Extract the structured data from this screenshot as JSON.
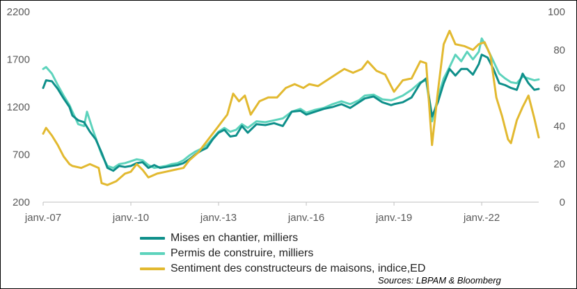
{
  "chart_data": {
    "type": "line",
    "x_tick_labels": [
      "janv.-07",
      "janv.-10",
      "janv.-13",
      "janv.-16",
      "janv.-19",
      "janv.-22"
    ],
    "x_ticks": [
      2007,
      2010,
      2013,
      2016,
      2019,
      2022
    ],
    "xlim": [
      2007,
      2023.95
    ],
    "y_left": {
      "ylim": [
        200,
        2200
      ],
      "ticks": [
        200,
        700,
        1200,
        1700,
        2200
      ]
    },
    "y_right": {
      "ylim": [
        0,
        100
      ],
      "ticks": [
        0,
        20,
        40,
        60,
        80,
        100
      ]
    },
    "grid": false,
    "legend_position": "bottom",
    "series": [
      {
        "name": "Mises en chantier, milliers",
        "axis": "left",
        "color": "#0E8F8A",
        "points": [
          [
            2007.0,
            1400
          ],
          [
            2007.1,
            1480
          ],
          [
            2007.3,
            1470
          ],
          [
            2007.5,
            1390
          ],
          [
            2007.7,
            1290
          ],
          [
            2007.9,
            1200
          ],
          [
            2008.0,
            1110
          ],
          [
            2008.2,
            1060
          ],
          [
            2008.4,
            1040
          ],
          [
            2008.6,
            940
          ],
          [
            2008.8,
            860
          ],
          [
            2009.0,
            720
          ],
          [
            2009.2,
            560
          ],
          [
            2009.4,
            530
          ],
          [
            2009.6,
            580
          ],
          [
            2009.8,
            570
          ],
          [
            2010.0,
            580
          ],
          [
            2010.2,
            610
          ],
          [
            2010.4,
            620
          ],
          [
            2010.6,
            560
          ],
          [
            2010.8,
            590
          ],
          [
            2011.0,
            560
          ],
          [
            2011.2,
            570
          ],
          [
            2011.4,
            580
          ],
          [
            2011.6,
            590
          ],
          [
            2011.8,
            610
          ],
          [
            2012.0,
            650
          ],
          [
            2012.2,
            700
          ],
          [
            2012.4,
            740
          ],
          [
            2012.6,
            770
          ],
          [
            2012.8,
            860
          ],
          [
            2013.0,
            930
          ],
          [
            2013.2,
            960
          ],
          [
            2013.4,
            890
          ],
          [
            2013.6,
            900
          ],
          [
            2013.8,
            1000
          ],
          [
            2014.0,
            930
          ],
          [
            2014.3,
            1020
          ],
          [
            2014.6,
            1010
          ],
          [
            2014.9,
            1030
          ],
          [
            2015.2,
            1000
          ],
          [
            2015.5,
            1150
          ],
          [
            2015.8,
            1160
          ],
          [
            2016.0,
            1120
          ],
          [
            2016.3,
            1150
          ],
          [
            2016.6,
            1180
          ],
          [
            2016.9,
            1200
          ],
          [
            2017.2,
            1230
          ],
          [
            2017.5,
            1190
          ],
          [
            2017.8,
            1250
          ],
          [
            2018.0,
            1290
          ],
          [
            2018.3,
            1310
          ],
          [
            2018.6,
            1250
          ],
          [
            2018.9,
            1220
          ],
          [
            2019.0,
            1230
          ],
          [
            2019.3,
            1250
          ],
          [
            2019.6,
            1300
          ],
          [
            2019.9,
            1450
          ],
          [
            2020.1,
            1500
          ],
          [
            2020.3,
            1100
          ],
          [
            2020.5,
            1250
          ],
          [
            2020.7,
            1450
          ],
          [
            2020.9,
            1600
          ],
          [
            2021.1,
            1530
          ],
          [
            2021.3,
            1600
          ],
          [
            2021.5,
            1600
          ],
          [
            2021.7,
            1540
          ],
          [
            2021.9,
            1650
          ],
          [
            2022.0,
            1750
          ],
          [
            2022.2,
            1720
          ],
          [
            2022.4,
            1600
          ],
          [
            2022.6,
            1450
          ],
          [
            2022.8,
            1430
          ],
          [
            2023.0,
            1400
          ],
          [
            2023.2,
            1380
          ],
          [
            2023.4,
            1550
          ],
          [
            2023.6,
            1450
          ],
          [
            2023.8,
            1380
          ],
          [
            2023.95,
            1390
          ]
        ]
      },
      {
        "name": "Permis de construire, milliers",
        "axis": "left",
        "color": "#5DD3BC",
        "points": [
          [
            2007.0,
            1600
          ],
          [
            2007.1,
            1620
          ],
          [
            2007.3,
            1550
          ],
          [
            2007.5,
            1430
          ],
          [
            2007.7,
            1320
          ],
          [
            2007.9,
            1220
          ],
          [
            2008.0,
            1150
          ],
          [
            2008.2,
            1020
          ],
          [
            2008.4,
            1000
          ],
          [
            2008.5,
            1150
          ],
          [
            2008.7,
            960
          ],
          [
            2009.0,
            700
          ],
          [
            2009.2,
            580
          ],
          [
            2009.4,
            560
          ],
          [
            2009.6,
            600
          ],
          [
            2009.8,
            610
          ],
          [
            2010.0,
            630
          ],
          [
            2010.2,
            650
          ],
          [
            2010.4,
            640
          ],
          [
            2010.6,
            590
          ],
          [
            2010.8,
            560
          ],
          [
            2011.0,
            570
          ],
          [
            2011.2,
            580
          ],
          [
            2011.4,
            600
          ],
          [
            2011.6,
            610
          ],
          [
            2011.8,
            640
          ],
          [
            2012.0,
            690
          ],
          [
            2012.2,
            730
          ],
          [
            2012.4,
            760
          ],
          [
            2012.6,
            800
          ],
          [
            2012.8,
            870
          ],
          [
            2013.0,
            940
          ],
          [
            2013.2,
            980
          ],
          [
            2013.4,
            940
          ],
          [
            2013.6,
            960
          ],
          [
            2013.8,
            1020
          ],
          [
            2014.0,
            980
          ],
          [
            2014.3,
            1050
          ],
          [
            2014.6,
            1040
          ],
          [
            2014.9,
            1060
          ],
          [
            2015.2,
            1080
          ],
          [
            2015.5,
            1150
          ],
          [
            2015.8,
            1180
          ],
          [
            2016.0,
            1140
          ],
          [
            2016.3,
            1170
          ],
          [
            2016.6,
            1190
          ],
          [
            2016.9,
            1230
          ],
          [
            2017.2,
            1260
          ],
          [
            2017.5,
            1230
          ],
          [
            2017.8,
            1270
          ],
          [
            2018.0,
            1320
          ],
          [
            2018.3,
            1330
          ],
          [
            2018.6,
            1280
          ],
          [
            2018.9,
            1270
          ],
          [
            2019.0,
            1280
          ],
          [
            2019.3,
            1320
          ],
          [
            2019.6,
            1380
          ],
          [
            2019.9,
            1460
          ],
          [
            2020.1,
            1480
          ],
          [
            2020.3,
            1050
          ],
          [
            2020.5,
            1300
          ],
          [
            2020.7,
            1500
          ],
          [
            2020.9,
            1620
          ],
          [
            2021.1,
            1750
          ],
          [
            2021.3,
            1680
          ],
          [
            2021.5,
            1780
          ],
          [
            2021.7,
            1700
          ],
          [
            2021.9,
            1780
          ],
          [
            2022.0,
            1920
          ],
          [
            2022.2,
            1810
          ],
          [
            2022.4,
            1680
          ],
          [
            2022.6,
            1550
          ],
          [
            2022.8,
            1500
          ],
          [
            2023.0,
            1460
          ],
          [
            2023.2,
            1450
          ],
          [
            2023.4,
            1520
          ],
          [
            2023.6,
            1500
          ],
          [
            2023.8,
            1480
          ],
          [
            2023.95,
            1490
          ]
        ]
      },
      {
        "name": "Sentiment des constructeurs de maisons, indice,ED",
        "axis": "right",
        "color": "#E2B930",
        "points": [
          [
            2007.0,
            36
          ],
          [
            2007.1,
            39
          ],
          [
            2007.3,
            35
          ],
          [
            2007.5,
            30
          ],
          [
            2007.7,
            24
          ],
          [
            2007.9,
            20
          ],
          [
            2008.0,
            19
          ],
          [
            2008.3,
            18
          ],
          [
            2008.6,
            20
          ],
          [
            2008.9,
            18
          ],
          [
            2009.0,
            10
          ],
          [
            2009.2,
            9
          ],
          [
            2009.5,
            11
          ],
          [
            2009.8,
            15
          ],
          [
            2010.0,
            16
          ],
          [
            2010.2,
            20
          ],
          [
            2010.4,
            17
          ],
          [
            2010.6,
            13
          ],
          [
            2010.9,
            15
          ],
          [
            2011.2,
            16
          ],
          [
            2011.5,
            17
          ],
          [
            2011.8,
            18
          ],
          [
            2012.0,
            22
          ],
          [
            2012.3,
            26
          ],
          [
            2012.6,
            32
          ],
          [
            2012.9,
            38
          ],
          [
            2013.1,
            42
          ],
          [
            2013.3,
            46
          ],
          [
            2013.5,
            57
          ],
          [
            2013.7,
            53
          ],
          [
            2013.9,
            56
          ],
          [
            2014.1,
            46
          ],
          [
            2014.4,
            53
          ],
          [
            2014.7,
            55
          ],
          [
            2015.0,
            55
          ],
          [
            2015.3,
            60
          ],
          [
            2015.6,
            62
          ],
          [
            2015.9,
            60
          ],
          [
            2016.1,
            62
          ],
          [
            2016.4,
            61
          ],
          [
            2016.7,
            64
          ],
          [
            2017.0,
            67
          ],
          [
            2017.3,
            70
          ],
          [
            2017.6,
            68
          ],
          [
            2017.9,
            70
          ],
          [
            2018.1,
            74
          ],
          [
            2018.4,
            69
          ],
          [
            2018.7,
            67
          ],
          [
            2019.0,
            58
          ],
          [
            2019.3,
            64
          ],
          [
            2019.6,
            65
          ],
          [
            2019.9,
            74
          ],
          [
            2020.1,
            73
          ],
          [
            2020.3,
            30
          ],
          [
            2020.5,
            58
          ],
          [
            2020.7,
            83
          ],
          [
            2020.9,
            90
          ],
          [
            2021.1,
            83
          ],
          [
            2021.4,
            82
          ],
          [
            2021.7,
            80
          ],
          [
            2021.9,
            83
          ],
          [
            2022.1,
            84
          ],
          [
            2022.3,
            77
          ],
          [
            2022.5,
            55
          ],
          [
            2022.7,
            45
          ],
          [
            2022.9,
            33
          ],
          [
            2023.0,
            31
          ],
          [
            2023.2,
            43
          ],
          [
            2023.4,
            50
          ],
          [
            2023.6,
            56
          ],
          [
            2023.8,
            44
          ],
          [
            2023.95,
            34
          ]
        ]
      }
    ]
  },
  "source": "Sources: LBPAM & Bloomberg"
}
